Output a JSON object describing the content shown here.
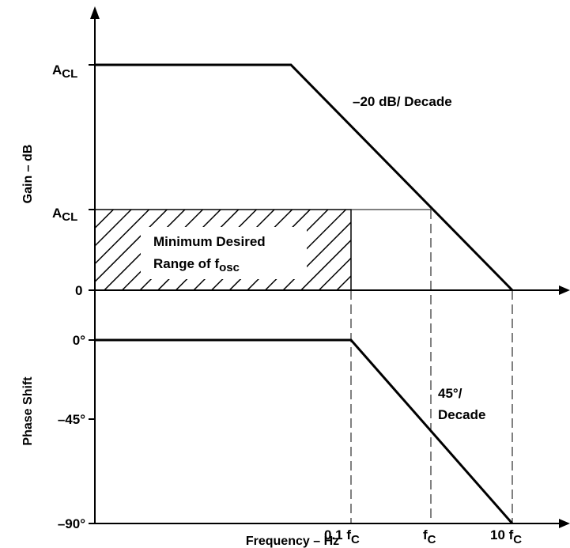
{
  "gain_axis": {
    "title": "Gain – dB",
    "tick_acl_top": {
      "main": "A",
      "sub": "CL"
    },
    "tick_acl_mid": {
      "main": "A",
      "sub": "CL"
    },
    "tick_zero": "0"
  },
  "phase_axis": {
    "title": "Phase Shift",
    "tick_0": "0°",
    "tick_minus45": "–45°",
    "tick_minus90": "–90°"
  },
  "frequency_axis": {
    "title": "Frequency – Hz",
    "tick_01fc": {
      "main": "0.1 f",
      "sub": "C"
    },
    "tick_fc": {
      "main": "f",
      "sub": "C"
    },
    "tick_10fc": {
      "main": "10 f",
      "sub": "C"
    }
  },
  "annotations": {
    "slope_gain": "–20 dB/ Decade",
    "slope_phase_line1": "45°/",
    "slope_phase_line2": "Decade",
    "range_line1": "Minimum Desired",
    "range_line2": {
      "main": "Range of f",
      "sub": "osc"
    }
  },
  "colors": {
    "line": "#000000",
    "background": "#ffffff"
  }
}
